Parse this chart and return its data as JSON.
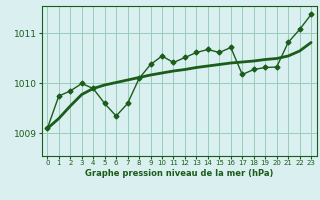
{
  "title": "Graphe pression niveau de la mer (hPa)",
  "bg_color": "#daf0f0",
  "line_color": "#1a5c1a",
  "grid_color": "#99ccbb",
  "x_ticks": [
    0,
    1,
    2,
    3,
    4,
    5,
    6,
    7,
    8,
    9,
    10,
    11,
    12,
    13,
    14,
    15,
    16,
    17,
    18,
    19,
    20,
    21,
    22,
    23
  ],
  "y_ticks": [
    1009,
    1010,
    1011
  ],
  "ylim": [
    1008.55,
    1011.55
  ],
  "xlim": [
    -0.5,
    23.5
  ],
  "jagged_x": [
    0,
    1,
    2,
    3,
    4,
    5,
    6,
    7,
    8,
    9,
    10,
    11,
    12,
    13,
    14,
    15,
    16,
    17,
    18,
    19,
    20,
    21,
    22,
    23
  ],
  "jagged_y": [
    1009.1,
    1009.75,
    1009.85,
    1010.0,
    1009.9,
    1009.6,
    1009.35,
    1009.6,
    1010.1,
    1010.38,
    1010.55,
    1010.42,
    1010.52,
    1010.62,
    1010.68,
    1010.62,
    1010.72,
    1010.18,
    1010.28,
    1010.32,
    1010.33,
    1010.82,
    1011.08,
    1011.38
  ],
  "smooth_x": [
    0,
    1,
    2,
    3,
    4,
    5,
    6,
    7,
    8,
    9,
    10,
    11,
    12,
    13,
    14,
    15,
    16,
    17,
    18,
    19,
    20,
    21,
    22,
    23
  ],
  "smooth_y": [
    1009.1,
    1009.3,
    1009.55,
    1009.78,
    1009.9,
    1009.97,
    1010.02,
    1010.07,
    1010.12,
    1010.17,
    1010.21,
    1010.25,
    1010.28,
    1010.32,
    1010.35,
    1010.38,
    1010.41,
    1010.43,
    1010.45,
    1010.48,
    1010.5,
    1010.55,
    1010.65,
    1010.82
  ]
}
